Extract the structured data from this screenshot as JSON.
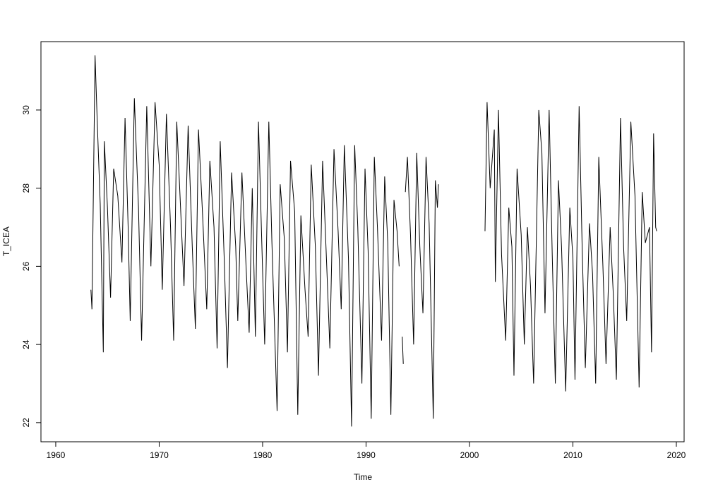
{
  "chart_data": {
    "type": "line",
    "x_label": "Time",
    "y_label": "T_ICEA",
    "x": [
      1963.4,
      1963.5,
      1963.8,
      1964.0,
      1964.3,
      1964.6,
      1964.7,
      1965.0,
      1965.3,
      1965.6,
      1966.0,
      1966.4,
      1966.7,
      1967.0,
      1967.2,
      1967.6,
      1968.0,
      1968.3,
      1968.8,
      1969.2,
      1969.6,
      1970.0,
      1970.3,
      1970.7,
      1971.1,
      1971.4,
      1971.7,
      1972.1,
      1972.4,
      1972.8,
      1973.2,
      1973.5,
      1973.8,
      1974.2,
      1974.6,
      1974.9,
      1975.3,
      1975.6,
      1975.9,
      1976.3,
      1976.6,
      1977.0,
      1977.4,
      1977.6,
      1978.0,
      1978.4,
      1978.7,
      1979.0,
      1979.3,
      1979.6,
      1979.9,
      1980.2,
      1980.6,
      1980.9,
      1981.4,
      1981.7,
      1982.1,
      1982.4,
      1982.7,
      1983.1,
      1983.4,
      1983.7,
      1984.1,
      1984.4,
      1984.7,
      1985.1,
      1985.4,
      1985.8,
      1986.2,
      1986.5,
      1986.9,
      1987.3,
      1987.6,
      1987.9,
      1988.3,
      1988.6,
      1988.9,
      1989.2,
      1989.6,
      1989.9,
      1990.2,
      1990.5,
      1990.8,
      1991.1,
      1991.5,
      1991.8,
      1992.1,
      1992.4,
      1992.7,
      1993.0,
      1993.2,
      1993.35,
      1993.5,
      1993.6,
      1993.7,
      1993.8,
      1994.0,
      1994.3,
      1994.6,
      1994.9,
      1995.2,
      1995.5,
      1995.8,
      1996.1,
      1996.5,
      1996.7,
      1996.9,
      1997.0,
      1999.0,
      2001.5,
      2001.7,
      2002.0,
      2002.4,
      2002.5,
      2002.8,
      2003.1,
      2003.5,
      2003.8,
      2004.1,
      2004.3,
      2004.6,
      2005.0,
      2005.3,
      2005.6,
      2005.9,
      2006.2,
      2006.7,
      2007.0,
      2007.3,
      2007.7,
      2008.0,
      2008.3,
      2008.6,
      2008.9,
      2009.3,
      2009.7,
      2010.0,
      2010.2,
      2010.6,
      2010.9,
      2011.2,
      2011.6,
      2011.9,
      2012.2,
      2012.5,
      2012.9,
      2013.2,
      2013.6,
      2013.9,
      2014.2,
      2014.6,
      2014.9,
      2015.2,
      2015.6,
      2016.0,
      2016.4,
      2016.7,
      2017.0,
      2017.4,
      2017.6,
      2017.8,
      2018.0,
      2018.1
    ],
    "values": [
      25.4,
      24.9,
      31.4,
      29.8,
      27.6,
      23.8,
      29.2,
      27.5,
      25.2,
      28.5,
      27.8,
      26.1,
      29.8,
      27.0,
      24.6,
      30.3,
      27.5,
      24.1,
      30.1,
      26.0,
      30.2,
      28.6,
      25.4,
      29.9,
      27.0,
      24.1,
      29.7,
      27.3,
      25.5,
      29.6,
      26.5,
      24.4,
      29.5,
      27.3,
      24.9,
      28.7,
      27.0,
      23.9,
      29.2,
      26.1,
      23.4,
      28.4,
      26.5,
      24.6,
      28.4,
      26.0,
      24.3,
      28.0,
      24.2,
      29.7,
      26.8,
      24.0,
      29.7,
      26.6,
      22.3,
      28.1,
      26.7,
      23.8,
      28.7,
      27.4,
      22.2,
      27.3,
      25.4,
      24.2,
      28.6,
      26.5,
      23.2,
      28.7,
      26.0,
      23.9,
      29.0,
      26.9,
      24.9,
      29.1,
      26.2,
      21.9,
      29.1,
      27.0,
      23.0,
      28.5,
      26.4,
      22.1,
      28.8,
      27.0,
      24.1,
      28.3,
      26.6,
      22.2,
      27.7,
      26.9,
      26.0,
      null,
      24.2,
      23.5,
      null,
      27.9,
      28.8,
      26.8,
      24.0,
      28.9,
      26.5,
      24.8,
      28.8,
      27.1,
      22.1,
      28.2,
      27.5,
      28.1,
      null,
      26.9,
      30.2,
      28.0,
      29.5,
      25.6,
      30.0,
      26.3,
      24.1,
      27.5,
      26.5,
      23.2,
      28.5,
      26.8,
      24.0,
      27.0,
      25.5,
      23.0,
      30.0,
      28.9,
      24.8,
      30.0,
      26.3,
      23.0,
      28.2,
      26.5,
      22.8,
      27.5,
      26.2,
      23.1,
      30.1,
      26.4,
      23.4,
      27.1,
      25.8,
      23.0,
      28.8,
      26.0,
      23.5,
      27.0,
      25.3,
      23.1,
      29.8,
      26.5,
      24.6,
      29.7,
      27.8,
      22.9,
      27.9,
      26.6,
      27.0,
      23.8,
      29.4,
      27.0,
      26.9
    ],
    "color": "#000000",
    "xlim": [
      1958.57,
      2020.75
    ],
    "xticks": [
      1960,
      1970,
      1980,
      1990,
      2000,
      2010,
      2020
    ],
    "ylim": [
      21.51,
      31.75
    ],
    "yticks": [
      22,
      24,
      26,
      28,
      30
    ]
  }
}
